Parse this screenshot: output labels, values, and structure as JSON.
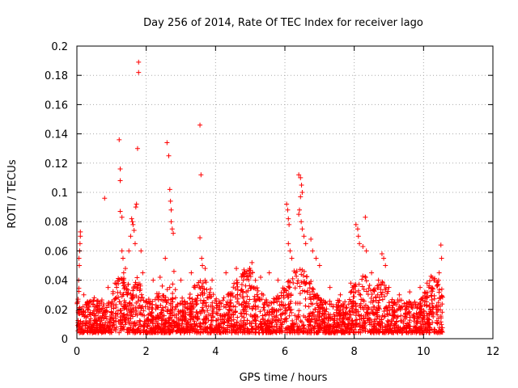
{
  "chart_data": {
    "type": "scatter",
    "title": "Day 256 of 2014, Rate Of TEC Index for receiver lago",
    "xlabel": "GPS time / hours",
    "ylabel": "ROTI / TECUs",
    "xlim": [
      0,
      12
    ],
    "ylim": [
      0,
      0.2
    ],
    "x_ticks": [
      0,
      2,
      4,
      6,
      8,
      10,
      12
    ],
    "y_ticks": [
      0,
      0.02,
      0.04,
      0.06,
      0.08,
      0.1,
      0.12,
      0.14,
      0.16,
      0.18,
      0.2
    ],
    "x_tick_labels": [
      "0",
      "2",
      "4",
      "6",
      "8",
      "10",
      "12"
    ],
    "y_tick_labels": [
      "0",
      "0.02",
      "0.04",
      "0.06",
      "0.08",
      "0.1",
      "0.12",
      "0.14",
      "0.16",
      "0.18",
      "0.2"
    ],
    "grid": true,
    "marker": "plus",
    "color": "#ff0000",
    "series": [
      {
        "name": "ROTI",
        "points": [
          [
            0.05,
            0.04
          ],
          [
            0.07,
            0.05
          ],
          [
            0.08,
            0.06
          ],
          [
            0.09,
            0.065
          ],
          [
            0.1,
            0.073
          ],
          [
            0.1,
            0.07
          ],
          [
            0.06,
            0.055
          ],
          [
            0.8,
            0.096
          ],
          [
            1.22,
            0.136
          ],
          [
            1.25,
            0.116
          ],
          [
            1.25,
            0.108
          ],
          [
            1.25,
            0.087
          ],
          [
            1.3,
            0.083
          ],
          [
            1.3,
            0.06
          ],
          [
            1.33,
            0.055
          ],
          [
            1.35,
            0.045
          ],
          [
            1.5,
            0.06
          ],
          [
            1.55,
            0.07
          ],
          [
            1.58,
            0.082
          ],
          [
            1.6,
            0.08
          ],
          [
            1.62,
            0.078
          ],
          [
            1.65,
            0.074
          ],
          [
            1.7,
            0.09
          ],
          [
            1.72,
            0.092
          ],
          [
            1.68,
            0.065
          ],
          [
            1.75,
            0.13
          ],
          [
            1.78,
            0.182
          ],
          [
            1.78,
            0.189
          ],
          [
            1.85,
            0.06
          ],
          [
            2.6,
            0.134
          ],
          [
            2.65,
            0.125
          ],
          [
            2.68,
            0.102
          ],
          [
            2.7,
            0.094
          ],
          [
            2.72,
            0.088
          ],
          [
            2.72,
            0.08
          ],
          [
            2.75,
            0.075
          ],
          [
            2.78,
            0.072
          ],
          [
            2.55,
            0.055
          ],
          [
            3.55,
            0.146
          ],
          [
            3.58,
            0.112
          ],
          [
            3.55,
            0.069
          ],
          [
            3.6,
            0.055
          ],
          [
            3.62,
            0.05
          ],
          [
            6.05,
            0.092
          ],
          [
            6.08,
            0.088
          ],
          [
            6.1,
            0.082
          ],
          [
            6.12,
            0.078
          ],
          [
            6.1,
            0.065
          ],
          [
            6.15,
            0.06
          ],
          [
            6.2,
            0.055
          ],
          [
            6.4,
            0.112
          ],
          [
            6.45,
            0.11
          ],
          [
            6.48,
            0.105
          ],
          [
            6.5,
            0.1
          ],
          [
            6.45,
            0.097
          ],
          [
            6.42,
            0.088
          ],
          [
            6.4,
            0.085
          ],
          [
            6.47,
            0.08
          ],
          [
            6.5,
            0.075
          ],
          [
            6.55,
            0.07
          ],
          [
            6.6,
            0.065
          ],
          [
            6.75,
            0.068
          ],
          [
            6.8,
            0.06
          ],
          [
            6.9,
            0.055
          ],
          [
            8.05,
            0.078
          ],
          [
            8.1,
            0.075
          ],
          [
            8.12,
            0.07
          ],
          [
            8.15,
            0.065
          ],
          [
            8.25,
            0.063
          ],
          [
            8.32,
            0.083
          ],
          [
            8.35,
            0.06
          ],
          [
            8.8,
            0.058
          ],
          [
            8.85,
            0.055
          ],
          [
            8.9,
            0.05
          ],
          [
            10.5,
            0.064
          ],
          [
            10.52,
            0.055
          ],
          [
            10.45,
            0.045
          ],
          [
            10.3,
            0.04
          ],
          [
            0.2,
            0.03
          ],
          [
            0.5,
            0.028
          ],
          [
            0.9,
            0.035
          ],
          [
            1.1,
            0.038
          ],
          [
            1.4,
            0.048
          ],
          [
            1.9,
            0.045
          ],
          [
            2.2,
            0.04
          ],
          [
            2.4,
            0.042
          ],
          [
            2.8,
            0.046
          ],
          [
            3.0,
            0.04
          ],
          [
            3.3,
            0.045
          ],
          [
            3.7,
            0.048
          ],
          [
            3.9,
            0.04
          ],
          [
            4.3,
            0.045
          ],
          [
            4.6,
            0.048
          ],
          [
            4.8,
            0.04
          ],
          [
            5.05,
            0.052
          ],
          [
            5.3,
            0.042
          ],
          [
            5.55,
            0.045
          ],
          [
            5.8,
            0.04
          ],
          [
            6.3,
            0.045
          ],
          [
            7.0,
            0.05
          ],
          [
            7.3,
            0.035
          ],
          [
            7.6,
            0.03
          ],
          [
            7.9,
            0.038
          ],
          [
            8.5,
            0.045
          ],
          [
            8.7,
            0.04
          ],
          [
            9.0,
            0.035
          ],
          [
            9.3,
            0.03
          ],
          [
            9.6,
            0.032
          ],
          [
            9.9,
            0.035
          ],
          [
            10.1,
            0.038
          ],
          [
            10.4,
            0.036
          ]
        ]
      }
    ]
  }
}
